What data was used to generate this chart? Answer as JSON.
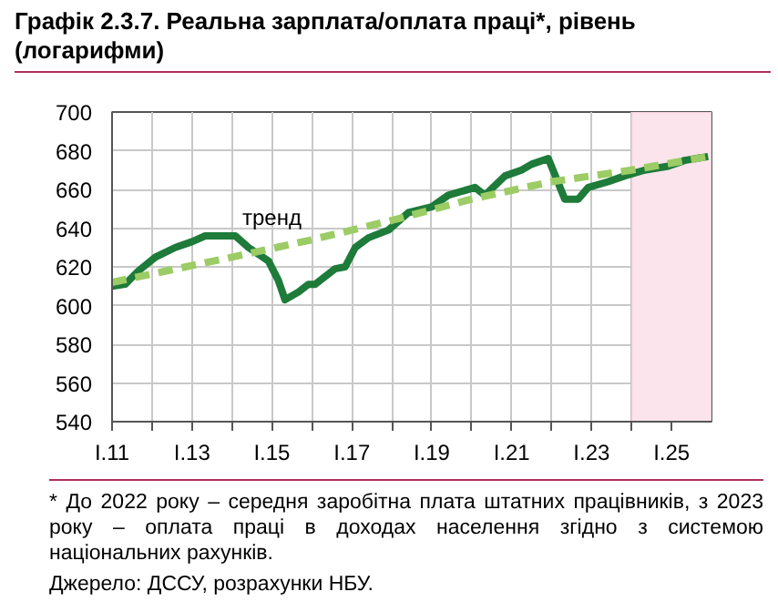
{
  "chart_data": {
    "type": "line",
    "title": "Графік 2.3.7. Реальна зарплата/оплата праці*, рівень (логарифми)",
    "xlim": [
      "2011-01",
      "2026-01"
    ],
    "ylim": [
      540,
      700
    ],
    "xticks": [
      {
        "value": "2011-01",
        "label": "I.11"
      },
      {
        "value": "2012-01",
        "label": null
      },
      {
        "value": "2013-01",
        "label": "I.13"
      },
      {
        "value": "2014-01",
        "label": null
      },
      {
        "value": "2015-01",
        "label": "I.15"
      },
      {
        "value": "2016-01",
        "label": null
      },
      {
        "value": "2017-01",
        "label": "I.17"
      },
      {
        "value": "2018-01",
        "label": null
      },
      {
        "value": "2019-01",
        "label": "I.19"
      },
      {
        "value": "2020-01",
        "label": null
      },
      {
        "value": "2021-01",
        "label": "I.21"
      },
      {
        "value": "2022-01",
        "label": null
      },
      {
        "value": "2023-01",
        "label": "I.23"
      },
      {
        "value": "2024-01",
        "label": null
      },
      {
        "value": "2025-01",
        "label": "I.25"
      }
    ],
    "yticks": [
      540,
      560,
      580,
      600,
      620,
      640,
      660,
      680,
      700
    ],
    "grid": true,
    "series": [
      {
        "color": "#1e7b3a",
        "line_style": "solid",
        "x": [
          "2011-01",
          "2011-05",
          "2011-09",
          "2012-02",
          "2012-08",
          "2013-01",
          "2013-05",
          "2013-09",
          "2014-02",
          "2014-06",
          "2014-12",
          "2015-03",
          "2015-05",
          "2015-09",
          "2015-12",
          "2016-02",
          "2016-08",
          "2016-11",
          "2017-02",
          "2017-06",
          "2017-12",
          "2018-06",
          "2019-01",
          "2019-06",
          "2020-02",
          "2020-05",
          "2020-11",
          "2021-04",
          "2021-07",
          "2021-12",
          "2022-05",
          "2022-09",
          "2022-12",
          "2023-06",
          "2023-11",
          "2024-05",
          "2024-12",
          "2025-05",
          "2025-12"
        ],
        "values": [
          610,
          611,
          618,
          625,
          630,
          633,
          636,
          636,
          636,
          630,
          623,
          613,
          603,
          607,
          611,
          611,
          619,
          620,
          630,
          635,
          639,
          648,
          651,
          657,
          661,
          657,
          667,
          670,
          673,
          676,
          655,
          655,
          661,
          664,
          667,
          670,
          672,
          675,
          677
        ]
      },
      {
        "name": "тренд",
        "color": "#9ccc65",
        "line_style": "dashed",
        "x": [
          "2011-01",
          "2014-01",
          "2016-01",
          "2018-01",
          "2020-01",
          "2022-01",
          "2024-01",
          "2025-12"
        ],
        "values": [
          612,
          625,
          634,
          644,
          655,
          664,
          670,
          677
        ]
      }
    ],
    "bands": [
      {
        "axis": "x",
        "from": "2024-01",
        "to": "2026-01",
        "color": "#fce4ec"
      }
    ],
    "annotations": [
      "* До 2022 року – середня заробітна плата штатних працівників, з 2023 року – оплата праці в доходах населення згідно з системою національних рахунків.",
      "Джерело: ДССУ, розрахунки НБУ."
    ]
  }
}
